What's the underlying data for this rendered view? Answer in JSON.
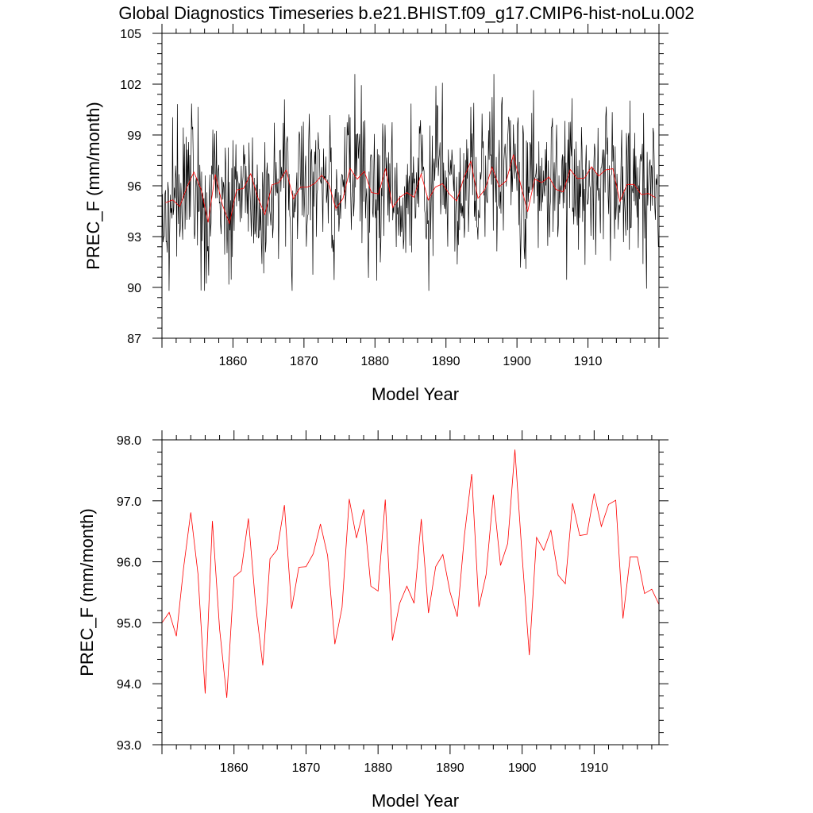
{
  "title": "Global Diagnostics Timeseries b.e21.BHIST.f09_g17.CMIP6-hist-noLu.002",
  "colors": {
    "monthly": "#000000",
    "annual": "#ff0000",
    "axis": "#000000"
  },
  "chart_data": [
    {
      "type": "line",
      "xlabel": "Model Year",
      "ylabel": "PREC_F (mm/month)",
      "xlim": [
        1850,
        1920
      ],
      "ylim": [
        87,
        105
      ],
      "xticks": [
        1860,
        1870,
        1880,
        1890,
        1900,
        1910
      ],
      "yticks": [
        87,
        90,
        93,
        96,
        99,
        102,
        105
      ],
      "ytick_labels": [
        "87",
        "90",
        "93",
        "96",
        "99",
        "102",
        "105"
      ],
      "series": [
        {
          "color": "#000000",
          "monthly_range": [
            89.8,
            102.6
          ],
          "x": [],
          "values": []
        },
        {
          "color": "#ff0000",
          "x": [],
          "values": []
        }
      ]
    },
    {
      "type": "line",
      "xlabel": "Model Year",
      "ylabel": "PREC_F (mm/month)",
      "xlim": [
        1850,
        1919
      ],
      "ylim": [
        93.0,
        98.0
      ],
      "xticks": [
        1860,
        1870,
        1880,
        1890,
        1900,
        1910
      ],
      "yticks": [
        93.0,
        94.0,
        95.0,
        96.0,
        97.0,
        98.0
      ],
      "ytick_labels": [
        "93.0",
        "94.0",
        "95.0",
        "96.0",
        "97.0",
        "98.0"
      ],
      "series": [
        {
          "color": "#ff0000",
          "x": [
            1850,
            1851,
            1852,
            1853,
            1854,
            1855,
            1856,
            1857,
            1858,
            1859,
            1860,
            1861,
            1862,
            1863,
            1864,
            1865,
            1866,
            1867,
            1868,
            1869,
            1870,
            1871,
            1872,
            1873,
            1874,
            1875,
            1876,
            1877,
            1878,
            1879,
            1880,
            1881,
            1882,
            1883,
            1884,
            1885,
            1886,
            1887,
            1888,
            1889,
            1890,
            1891,
            1892,
            1893,
            1894,
            1895,
            1896,
            1897,
            1898,
            1899,
            1900,
            1901,
            1902,
            1903,
            1904,
            1905,
            1906,
            1907,
            1908,
            1909,
            1910,
            1911,
            1912,
            1913,
            1914,
            1915,
            1916,
            1917,
            1918,
            1919
          ],
          "values": [
            95.0,
            95.17,
            94.78,
            95.9,
            96.81,
            95.8,
            93.84,
            96.67,
            94.9,
            93.77,
            95.75,
            95.85,
            96.71,
            95.3,
            94.3,
            96.05,
            96.2,
            96.93,
            95.23,
            95.91,
            95.92,
            96.13,
            96.62,
            96.1,
            94.65,
            95.25,
            97.03,
            96.39,
            96.86,
            95.6,
            95.52,
            97.02,
            94.71,
            95.32,
            95.6,
            95.32,
            96.7,
            95.16,
            95.92,
            96.12,
            95.5,
            95.1,
            96.44,
            97.44,
            95.26,
            95.79,
            97.1,
            95.94,
            96.3,
            97.84,
            96.1,
            94.47,
            96.4,
            96.19,
            96.52,
            95.78,
            95.64,
            96.96,
            96.43,
            96.45,
            97.12,
            96.58,
            96.94,
            97.01,
            95.07,
            96.08,
            96.08,
            95.48,
            95.55,
            95.3
          ]
        }
      ]
    }
  ]
}
